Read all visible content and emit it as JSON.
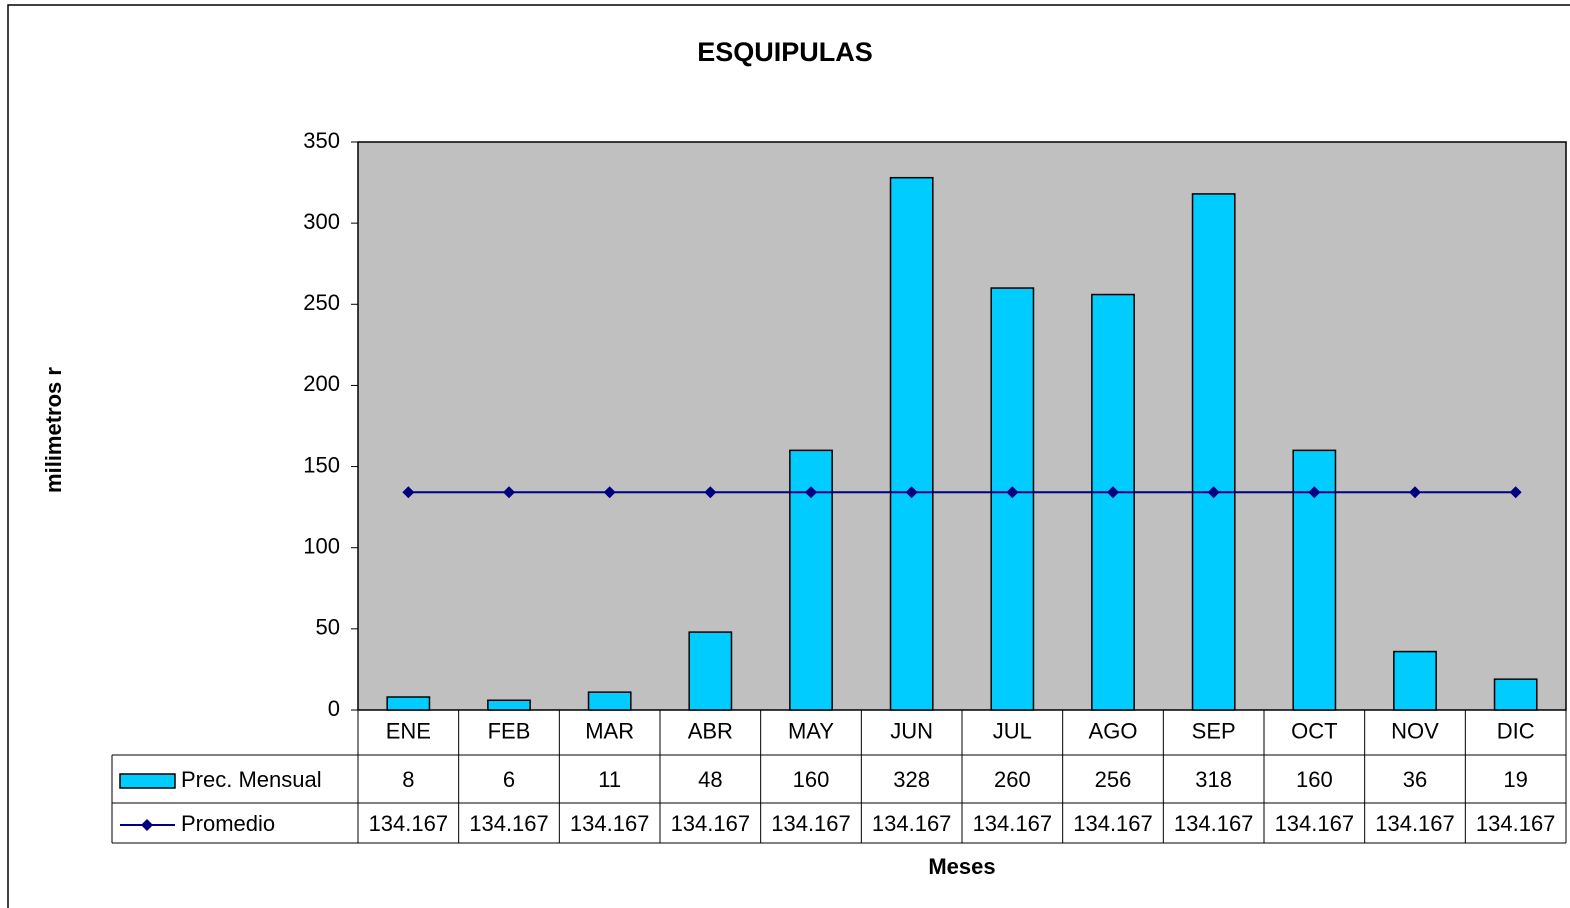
{
  "chart_data": {
    "type": "bar",
    "title": "ESQUIPULAS",
    "x_label": "Meses",
    "y_label": "milimetros r",
    "categories": [
      "ENE",
      "FEB",
      "MAR",
      "ABR",
      "MAY",
      "JUN",
      "JUL",
      "AGO",
      "SEP",
      "OCT",
      "NOV",
      "DIC"
    ],
    "series": [
      {
        "name": "Prec. Mensual",
        "type": "bar",
        "color": "#00ccff",
        "values": [
          8,
          6,
          11,
          48,
          160,
          328,
          260,
          256,
          318,
          160,
          36,
          19
        ]
      },
      {
        "name": "Promedio",
        "type": "line",
        "color": "#000080",
        "values": [
          134.167,
          134.167,
          134.167,
          134.167,
          134.167,
          134.167,
          134.167,
          134.167,
          134.167,
          134.167,
          134.167,
          134.167
        ]
      }
    ],
    "ylim": [
      0,
      350
    ],
    "yticks": [
      0,
      50,
      100,
      150,
      200,
      250,
      300,
      350
    ],
    "plot_background": "#c0c0c0"
  }
}
